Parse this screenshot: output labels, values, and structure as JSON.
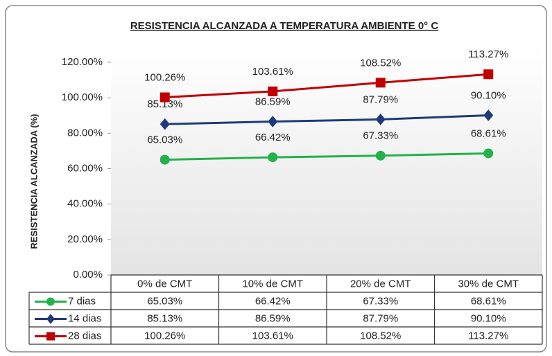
{
  "chart_data": {
    "type": "line",
    "title": "RESISTENCIA ALCANZADA A TEMPERATURA AMBIENTE 0° C",
    "y_label": "RESISTENCIA ALCANZADA    (%)",
    "categories": [
      "0% de CMT",
      "10% de CMT",
      "20% de CMT",
      "30% de CMT"
    ],
    "series": [
      {
        "name": "7 dias",
        "color": "#22b14c",
        "marker": "circle",
        "values": [
          65.03,
          66.42,
          67.33,
          68.61
        ],
        "value_labels": [
          "65.03%",
          "66.42%",
          "67.33%",
          "68.61%"
        ]
      },
      {
        "name": "14 dias",
        "color": "#1f3a7a",
        "marker": "diamond",
        "values": [
          85.13,
          86.59,
          87.79,
          90.1
        ],
        "value_labels": [
          "85.13%",
          "86.59%",
          "87.79%",
          "90.10%"
        ]
      },
      {
        "name": "28 dias",
        "color": "#c00000",
        "marker": "square",
        "values": [
          100.26,
          103.61,
          108.52,
          113.27
        ],
        "value_labels": [
          "100.26%",
          "103.61%",
          "108.52%",
          "113.27%"
        ]
      }
    ],
    "ylim": [
      0,
      120
    ],
    "yticks": [
      {
        "value": 0,
        "label": "0.00%"
      },
      {
        "value": 20,
        "label": "20.00%"
      },
      {
        "value": 40,
        "label": "40.00%"
      },
      {
        "value": 60,
        "label": "60.00%"
      },
      {
        "value": 80,
        "label": "80.00%"
      },
      {
        "value": 100,
        "label": "100.00%"
      },
      {
        "value": 120,
        "label": "120.00%"
      }
    ],
    "data_table": true
  }
}
